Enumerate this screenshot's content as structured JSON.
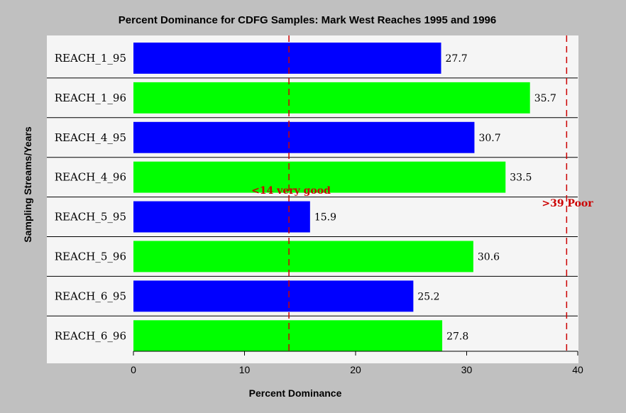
{
  "chart_data": {
    "type": "bar",
    "orientation": "horizontal",
    "title": "Percent Dominance for CDFG Samples: Mark West Reaches 1995 and 1996",
    "xlabel": "Percent Dominance",
    "ylabel": "Sampling Streams/Years",
    "categories": [
      "REACH_1_95",
      "REACH_1_96",
      "REACH_4_95",
      "REACH_4_96",
      "REACH_5_95",
      "REACH_5_96",
      "REACH_6_95",
      "REACH_6_96"
    ],
    "values": [
      27.7,
      35.7,
      30.7,
      33.5,
      15.9,
      30.6,
      25.2,
      27.8
    ],
    "value_labels": [
      "27.7",
      "35.7",
      "30.7",
      "33.5",
      "15.9",
      "30.6",
      "25.2",
      "27.8"
    ],
    "bar_colors": [
      "#0000ff",
      "#00ff00",
      "#0000ff",
      "#00ff00",
      "#0000ff",
      "#00ff00",
      "#0000ff",
      "#00ff00"
    ],
    "xlim": [
      0,
      40
    ],
    "xticks": [
      0,
      10,
      20,
      30,
      40
    ],
    "xtick_labels": [
      "0",
      "10",
      "20",
      "30",
      "40"
    ],
    "reference_lines": [
      {
        "value": 14,
        "label": "<14 very good",
        "color": "#cc0000"
      },
      {
        "value": 39,
        "label": ">39 Poor",
        "color": "#cc0000"
      }
    ],
    "grid": false
  },
  "colors": {
    "background": "#c0c0c0",
    "plot_background": "#f5f5f5",
    "reference": "#cc0000"
  }
}
